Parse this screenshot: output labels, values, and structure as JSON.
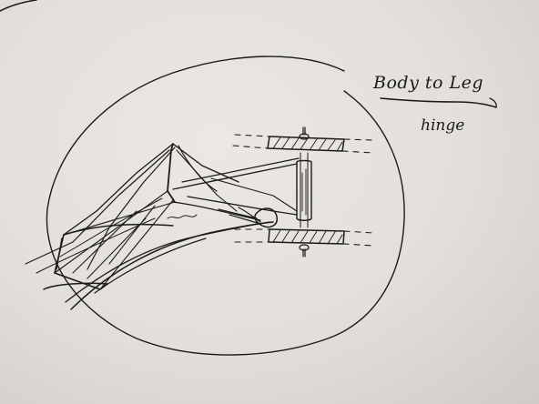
{
  "annotation": {
    "title_line": "Body to Leg",
    "second_line": "hinge"
  }
}
